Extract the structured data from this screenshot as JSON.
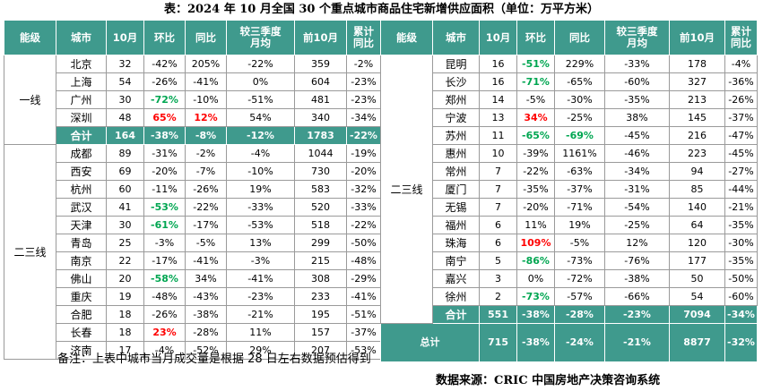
{
  "title": "表：2024 年 10 月全国 30 个重点城市商品住宅新增供应面积（单位：万平方米）",
  "headers": [
    "能级",
    "城市",
    "10月",
    "环比",
    "同比",
    "较三季度\n月均",
    "前10月",
    "累计\n同比"
  ],
  "left": {
    "tiers": [
      {
        "name": "一线",
        "rows": [
          {
            "city": "北京",
            "oct": "32",
            "mom": "-42%",
            "yoy": "205%",
            "vq3": "-22%",
            "ytd": "359",
            "ytd_yoy": "-2%"
          },
          {
            "city": "上海",
            "oct": "54",
            "mom": "-26%",
            "yoy": "-41%",
            "vq3": "0%",
            "ytd": "604",
            "ytd_yoy": "-23%"
          },
          {
            "city": "广州",
            "oct": "30",
            "mom": "-72%",
            "yoy": "-10%",
            "vq3": "-51%",
            "ytd": "481",
            "ytd_yoy": "-23%",
            "hl": {
              "mom": "green"
            }
          },
          {
            "city": "深圳",
            "oct": "48",
            "mom": "65%",
            "yoy": "12%",
            "vq3": "54%",
            "ytd": "340",
            "ytd_yoy": "-34%",
            "hl": {
              "mom": "red",
              "yoy": "red"
            }
          }
        ],
        "total": {
          "city": "合计",
          "oct": "164",
          "mom": "-38%",
          "yoy": "-8%",
          "vq3": "-12%",
          "ytd": "1783",
          "ytd_yoy": "-22%"
        }
      },
      {
        "name": "二三线",
        "rows": [
          {
            "city": "成都",
            "oct": "89",
            "mom": "-31%",
            "yoy": "-2%",
            "vq3": "-4%",
            "ytd": "1044",
            "ytd_yoy": "-19%"
          },
          {
            "city": "西安",
            "oct": "69",
            "mom": "-20%",
            "yoy": "-7%",
            "vq3": "-10%",
            "ytd": "730",
            "ytd_yoy": "-20%"
          },
          {
            "city": "杭州",
            "oct": "60",
            "mom": "-11%",
            "yoy": "-26%",
            "vq3": "19%",
            "ytd": "583",
            "ytd_yoy": "-32%"
          },
          {
            "city": "武汉",
            "oct": "41",
            "mom": "-53%",
            "yoy": "-22%",
            "vq3": "-33%",
            "ytd": "520",
            "ytd_yoy": "-33%",
            "hl": {
              "mom": "green"
            }
          },
          {
            "city": "天津",
            "oct": "30",
            "mom": "-61%",
            "yoy": "-17%",
            "vq3": "-53%",
            "ytd": "518",
            "ytd_yoy": "-22%",
            "hl": {
              "mom": "green"
            }
          },
          {
            "city": "青岛",
            "oct": "25",
            "mom": "-3%",
            "yoy": "-5%",
            "vq3": "13%",
            "ytd": "299",
            "ytd_yoy": "-50%"
          },
          {
            "city": "南京",
            "oct": "22",
            "mom": "-17%",
            "yoy": "-41%",
            "vq3": "-3%",
            "ytd": "215",
            "ytd_yoy": "-48%"
          },
          {
            "city": "佛山",
            "oct": "20",
            "mom": "-58%",
            "yoy": "34%",
            "vq3": "-41%",
            "ytd": "308",
            "ytd_yoy": "-29%",
            "hl": {
              "mom": "green"
            }
          },
          {
            "city": "重庆",
            "oct": "19",
            "mom": "-48%",
            "yoy": "-43%",
            "vq3": "-23%",
            "ytd": "233",
            "ytd_yoy": "-41%"
          },
          {
            "city": "合肥",
            "oct": "18",
            "mom": "-26%",
            "yoy": "-38%",
            "vq3": "-21%",
            "ytd": "195",
            "ytd_yoy": "-51%"
          },
          {
            "city": "长春",
            "oct": "18",
            "mom": "23%",
            "yoy": "-28%",
            "vq3": "11%",
            "ytd": "157",
            "ytd_yoy": "-37%",
            "hl": {
              "mom": "red"
            }
          },
          {
            "city": "济南",
            "oct": "17",
            "mom": "-4%",
            "yoy": "-52%",
            "vq3": "29%",
            "ytd": "207",
            "ytd_yoy": "-53%"
          }
        ]
      }
    ]
  },
  "right": {
    "tiers": [
      {
        "name": "二三线",
        "rows": [
          {
            "city": "昆明",
            "oct": "16",
            "mom": "-51%",
            "yoy": "229%",
            "vq3": "-33%",
            "ytd": "178",
            "ytd_yoy": "-4%",
            "hl": {
              "mom": "green"
            }
          },
          {
            "city": "长沙",
            "oct": "16",
            "mom": "-71%",
            "yoy": "-65%",
            "vq3": "-60%",
            "ytd": "327",
            "ytd_yoy": "-36%",
            "hl": {
              "mom": "green"
            }
          },
          {
            "city": "郑州",
            "oct": "14",
            "mom": "-5%",
            "yoy": "-30%",
            "vq3": "-35%",
            "ytd": "213",
            "ytd_yoy": "-26%"
          },
          {
            "city": "宁波",
            "oct": "13",
            "mom": "34%",
            "yoy": "-25%",
            "vq3": "38%",
            "ytd": "145",
            "ytd_yoy": "-37%",
            "hl": {
              "mom": "red"
            }
          },
          {
            "city": "苏州",
            "oct": "11",
            "mom": "-65%",
            "yoy": "-69%",
            "vq3": "-45%",
            "ytd": "216",
            "ytd_yoy": "-47%",
            "hl": {
              "mom": "green",
              "yoy": "green"
            }
          },
          {
            "city": "惠州",
            "oct": "10",
            "mom": "-39%",
            "yoy": "1161%",
            "vq3": "-46%",
            "ytd": "223",
            "ytd_yoy": "-45%"
          },
          {
            "city": "常州",
            "oct": "7",
            "mom": "-22%",
            "yoy": "-63%",
            "vq3": "-34%",
            "ytd": "94",
            "ytd_yoy": "-27%"
          },
          {
            "city": "厦门",
            "oct": "7",
            "mom": "-35%",
            "yoy": "-37%",
            "vq3": "-31%",
            "ytd": "85",
            "ytd_yoy": "-44%"
          },
          {
            "city": "无锡",
            "oct": "7",
            "mom": "-20%",
            "yoy": "-71%",
            "vq3": "-54%",
            "ytd": "140",
            "ytd_yoy": "-21%"
          },
          {
            "city": "福州",
            "oct": "6",
            "mom": "11%",
            "yoy": "19%",
            "vq3": "-25%",
            "ytd": "64",
            "ytd_yoy": "-35%"
          },
          {
            "city": "珠海",
            "oct": "6",
            "mom": "109%",
            "yoy": "-5%",
            "vq3": "12%",
            "ytd": "120",
            "ytd_yoy": "-30%",
            "hl": {
              "mom": "red"
            }
          },
          {
            "city": "南宁",
            "oct": "5",
            "mom": "-86%",
            "yoy": "-73%",
            "vq3": "-76%",
            "ytd": "177",
            "ytd_yoy": "-35%",
            "hl": {
              "mom": "green"
            }
          },
          {
            "city": "嘉兴",
            "oct": "3",
            "mom": "0%",
            "yoy": "-72%",
            "vq3": "-38%",
            "ytd": "50",
            "ytd_yoy": "-50%"
          },
          {
            "city": "徐州",
            "oct": "2",
            "mom": "-73%",
            "yoy": "-57%",
            "vq3": "-66%",
            "ytd": "54",
            "ytd_yoy": "-60%",
            "hl": {
              "mom": "green"
            }
          }
        ],
        "total": {
          "city": "合计",
          "oct": "551",
          "mom": "-38%",
          "yoy": "-28%",
          "vq3": "-23%",
          "ytd": "7094",
          "ytd_yoy": "-34%"
        }
      }
    ],
    "grand_total": {
      "label": "总计",
      "oct": "715",
      "mom": "-38%",
      "yoy": "-24%",
      "vq3": "-21%",
      "ytd": "8877",
      "ytd_yoy": "-32%"
    }
  },
  "note": "备注：上表中城市当月成交量是根据 28 日左右数据预估得到",
  "source": "数据来源：CRIC 中国房地产决策咨询系统"
}
